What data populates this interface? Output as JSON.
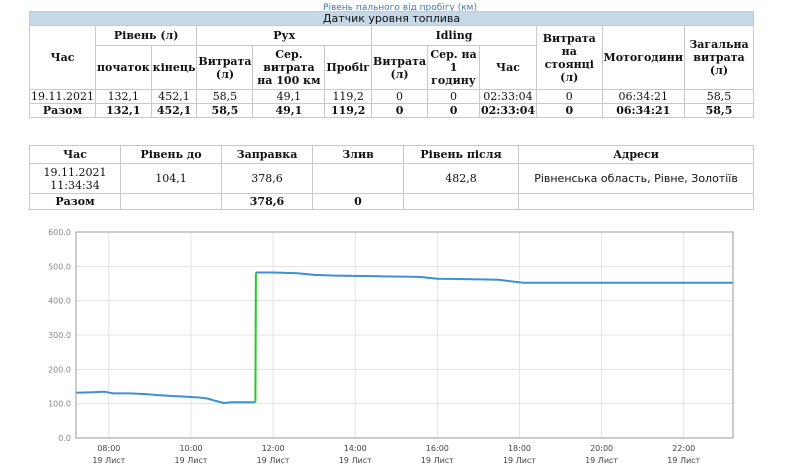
{
  "caption": "Рівень пального від пробігу (км)",
  "sensor_title": "Датчик уровня топлива",
  "table1": {
    "h_time": "Час",
    "h_level": "Рівень (л)",
    "h_move": "Рух",
    "h_idling": "Idling",
    "h_stand": "Витрата на стоянці (л)",
    "h_motor": "Мотогодини",
    "h_total": "Загальна витрата (л)",
    "h_start": "початок",
    "h_end": "кінець",
    "h_cons": "Витрата (л)",
    "h_avg100": "Сер. витрата на 100 км",
    "h_mileage": "Пробіг",
    "h_icons": "Витрата (л)",
    "h_avg1h": "Сер. на 1 годину",
    "h_itime": "Час",
    "rows": [
      {
        "time": "19.11.2021",
        "start": "132,1",
        "end": "452,1",
        "cons": "58,5",
        "avg100": "49,1",
        "mileage": "119,2",
        "icons": "0",
        "avg1h": "0",
        "itime": "02:33:04",
        "stand": "0",
        "motor": "06:34:21",
        "total": "58,5"
      }
    ],
    "total": {
      "time": "Разом",
      "start": "132,1",
      "end": "452,1",
      "cons": "58,5",
      "avg100": "49,1",
      "mileage": "119,2",
      "icons": "0",
      "avg1h": "0",
      "itime": "02:33:04",
      "stand": "0",
      "motor": "06:34:21",
      "total": "58,5"
    }
  },
  "table2": {
    "h_time": "Час",
    "h_before": "Рівень до",
    "h_refuel": "Заправка",
    "h_drain": "Злив",
    "h_after": "Рівень після",
    "h_addr": "Адреси",
    "row": {
      "date": "19.11.2021",
      "clock": "11:34:34",
      "before": "104,1",
      "refuel": "378,6",
      "drain": "",
      "after": "482,8",
      "addr": "Рівненська область, Рівне, Золотіїв"
    },
    "total": {
      "label": "Разом",
      "refuel": "378,6",
      "drain": "0"
    }
  },
  "chart_data": {
    "type": "line",
    "ylim": [
      0,
      600
    ],
    "yticks": [
      "0.0",
      "100.0",
      "200.0",
      "300.0",
      "400.0",
      "500.0",
      "600.0"
    ],
    "xlim": [
      7.2,
      23.2
    ],
    "xticks": [
      {
        "x": 8,
        "time": "08:00",
        "day": "19 Лист"
      },
      {
        "x": 10,
        "time": "10:00",
        "day": "19 Лист"
      },
      {
        "x": 12,
        "time": "12:00",
        "day": "19 Лист"
      },
      {
        "x": 14,
        "time": "14:00",
        "day": "19 Лист"
      },
      {
        "x": 16,
        "time": "16:00",
        "day": "19 Лист"
      },
      {
        "x": 18,
        "time": "18:00",
        "day": "19 Лист"
      },
      {
        "x": 20,
        "time": "20:00",
        "day": "19 Лист"
      },
      {
        "x": 22,
        "time": "22:00",
        "day": "19 Лист"
      }
    ],
    "series": [
      {
        "color": "#3d8fd6",
        "points": [
          [
            7.2,
            132
          ],
          [
            7.6,
            133
          ],
          [
            7.9,
            135
          ],
          [
            8.1,
            130
          ],
          [
            8.5,
            130
          ],
          [
            8.9,
            128
          ],
          [
            9.2,
            125
          ],
          [
            9.6,
            122
          ],
          [
            9.9,
            120
          ],
          [
            10.2,
            118
          ],
          [
            10.4,
            115
          ],
          [
            10.6,
            108
          ],
          [
            10.8,
            102
          ],
          [
            11.0,
            104
          ],
          [
            11.2,
            104
          ],
          [
            11.57,
            104
          ]
        ]
      },
      {
        "color": "#22cc22",
        "points": [
          [
            11.57,
            104
          ],
          [
            11.58,
            482
          ]
        ]
      },
      {
        "color": "#3d8fd6",
        "points": [
          [
            11.58,
            482
          ],
          [
            12.0,
            482
          ],
          [
            12.6,
            480
          ],
          [
            13.0,
            475
          ],
          [
            13.5,
            473
          ],
          [
            14.0,
            472
          ],
          [
            14.6,
            471
          ],
          [
            15.2,
            470
          ],
          [
            15.6,
            469
          ],
          [
            16.0,
            464
          ],
          [
            16.5,
            463
          ],
          [
            17.0,
            462
          ],
          [
            17.5,
            461
          ],
          [
            17.8,
            456
          ],
          [
            18.1,
            452
          ],
          [
            18.5,
            452
          ],
          [
            19.5,
            452
          ],
          [
            21.0,
            452
          ],
          [
            23.2,
            452
          ]
        ]
      }
    ]
  }
}
